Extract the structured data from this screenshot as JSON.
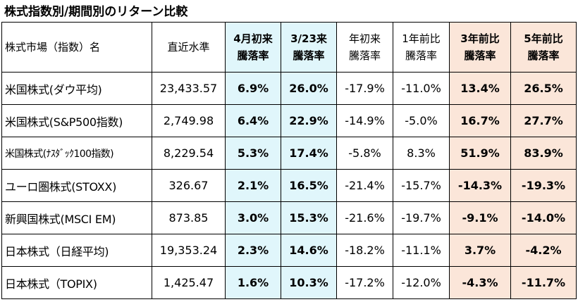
{
  "title": "株式指数別/期間別のリターン比較",
  "table": {
    "headers": [
      {
        "lines": [
          "株式市場（指数）名"
        ],
        "style": "plain"
      },
      {
        "lines": [
          "直近水準"
        ],
        "style": "plain"
      },
      {
        "lines": [
          "4月初来",
          "騰落率"
        ],
        "style": "cyan-bold"
      },
      {
        "lines": [
          "3/23来",
          "騰落率"
        ],
        "style": "cyan-bold"
      },
      {
        "lines": [
          "年初来",
          "騰落率"
        ],
        "style": "plain"
      },
      {
        "lines": [
          "1年前比",
          "騰落率"
        ],
        "style": "plain"
      },
      {
        "lines": [
          "3年前比",
          "騰落率"
        ],
        "style": "peach-bold"
      },
      {
        "lines": [
          "5年前比",
          "騰落率"
        ],
        "style": "peach-bold"
      }
    ],
    "rows": [
      [
        "米国株式(ダウ平均)",
        "23,433.57",
        "6.9%",
        "26.0%",
        "-17.9%",
        "-11.0%",
        "13.4%",
        "26.5%"
      ],
      [
        "米国株式(S&P500指数)",
        "2,749.98",
        "6.4%",
        "22.9%",
        "-14.9%",
        "-5.0%",
        "16.7%",
        "27.7%"
      ],
      [
        "米国株式(ﾅｽﾀﾞｯｸ100指数)",
        "8,229.54",
        "5.3%",
        "17.4%",
        "-5.8%",
        "8.3%",
        "51.9%",
        "83.9%"
      ],
      [
        "ユーロ圏株式(STOXX)",
        "326.67",
        "2.1%",
        "16.5%",
        "-21.4%",
        "-15.7%",
        "-14.3%",
        "-19.3%"
      ],
      [
        "新興国株式(MSCI EM)",
        "873.85",
        "3.0%",
        "15.3%",
        "-21.6%",
        "-19.7%",
        "-9.1%",
        "-14.0%"
      ],
      [
        "日本株式（日経平均)",
        "19,353.24",
        "2.3%",
        "14.6%",
        "-18.2%",
        "-11.1%",
        "3.7%",
        "-4.2%"
      ],
      [
        "日本株式（TOPIX)",
        "1,425.47",
        "1.6%",
        "10.3%",
        "-17.2%",
        "-12.0%",
        "-4.3%",
        "-11.7%"
      ]
    ]
  },
  "colors": {
    "cyan_highlight": "#e0f6fb",
    "peach_highlight": "#fbe6d9",
    "border": "#000000",
    "text": "#000000"
  }
}
